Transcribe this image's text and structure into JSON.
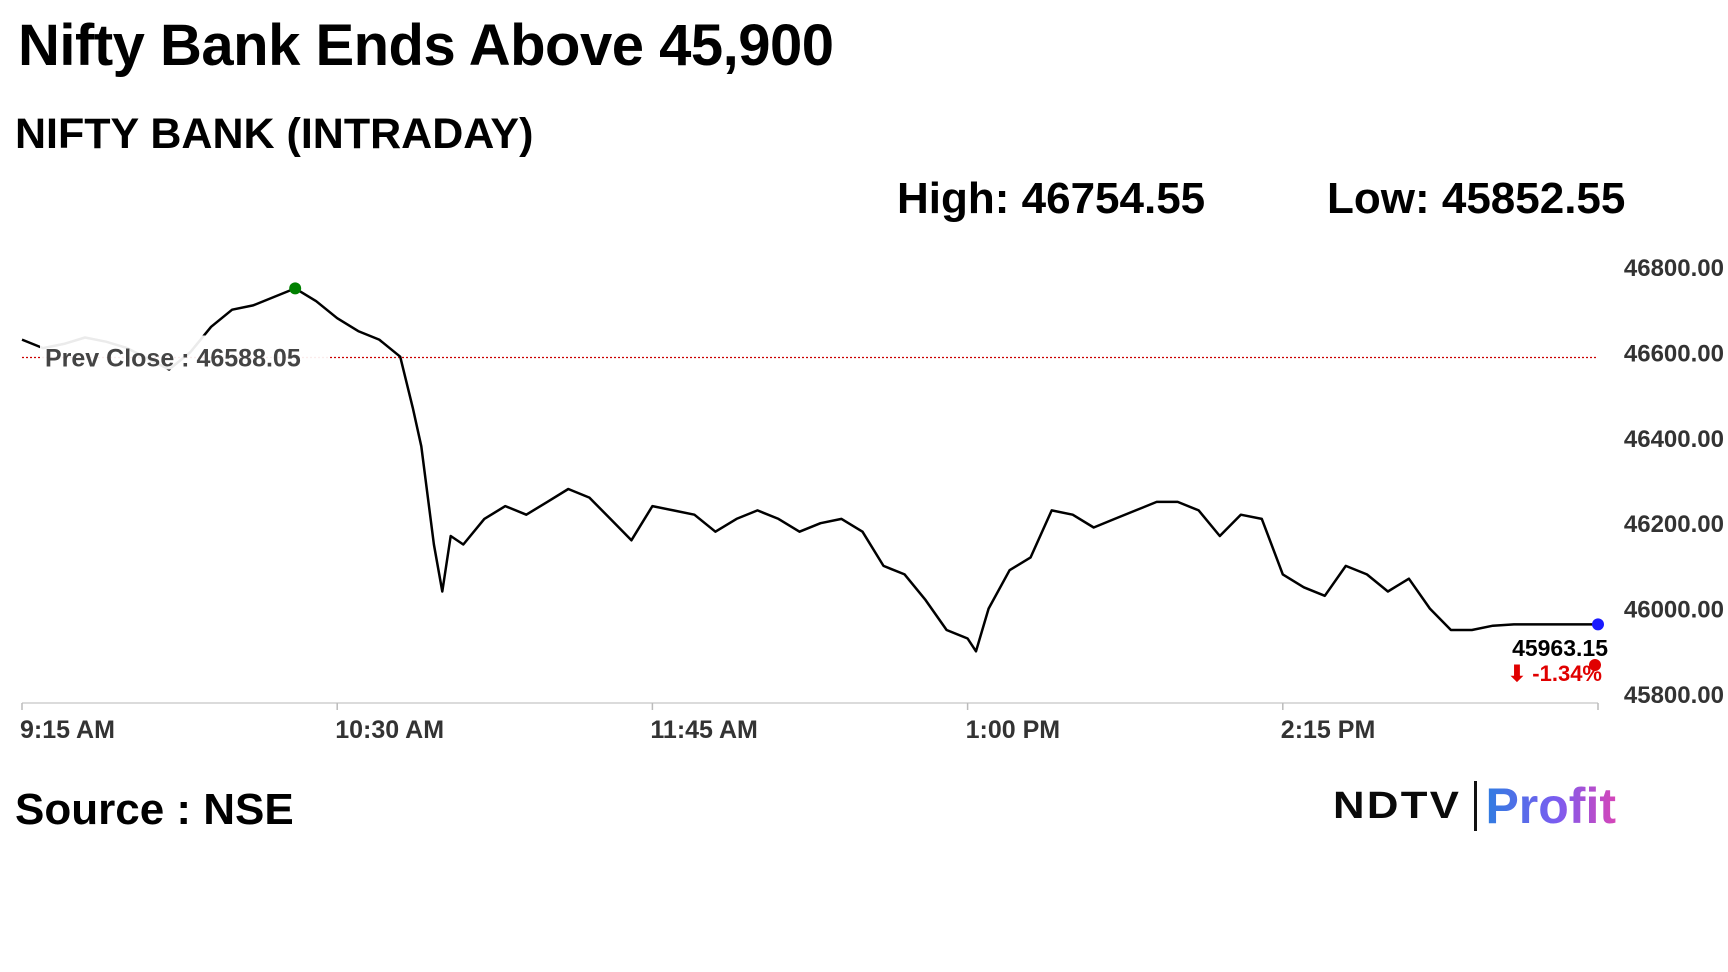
{
  "headline": "Nifty Bank Ends Above 45,900",
  "subtitle": "NIFTY BANK (INTRADAY)",
  "stats": {
    "high": "High: 46754.55",
    "low": "Low: 45852.55"
  },
  "source": "Source : NSE",
  "logo": {
    "part1": "NDTV",
    "part2": "Profit"
  },
  "colors": {
    "line": "#000000",
    "prev_close": "#cc0000",
    "high_marker": "#008000",
    "last_marker": "#1a1aff",
    "change_negative": "#e00000"
  },
  "chart_data": {
    "type": "line",
    "title": "NIFTY BANK (INTRADAY)",
    "xlabel": "",
    "ylabel": "",
    "xlim": [
      "9:15 AM",
      "3:30 PM"
    ],
    "ylim": [
      45800,
      46800
    ],
    "x_ticks": [
      "9:15 AM",
      "10:30 AM",
      "11:45 AM",
      "1:00 PM",
      "2:15 PM"
    ],
    "y_ticks": [
      "46800.00",
      "46600.00",
      "46400.00",
      "46200.00",
      "46000.00",
      "45800.00"
    ],
    "y_tick_values": [
      46800,
      46600,
      46400,
      46200,
      46000,
      45800
    ],
    "prev_close": {
      "label": "Prev Close : 46588.05",
      "value": 46588.05
    },
    "last": {
      "label": "45963.15",
      "value": 45963.15,
      "change_label": "⬇ -1.34%"
    },
    "grid": false,
    "series": [
      {
        "x": [
          "9:15 AM",
          "9:20 AM",
          "9:25 AM",
          "9:30 AM",
          "9:35 AM",
          "9:40 AM",
          "9:45 AM",
          "9:50 AM",
          "9:55 AM",
          "10:00 AM",
          "10:05 AM",
          "10:10 AM",
          "10:15 AM",
          "10:20 AM",
          "10:25 AM",
          "10:30 AM",
          "10:35 AM",
          "10:40 AM",
          "10:45 AM",
          "10:48 AM",
          "10:50 AM",
          "10:53 AM",
          "10:55 AM",
          "10:57 AM",
          "11:00 AM",
          "11:05 AM",
          "11:10 AM",
          "11:15 AM",
          "11:20 AM",
          "11:25 AM",
          "11:30 AM",
          "11:35 AM",
          "11:40 AM",
          "11:45 AM",
          "11:50 AM",
          "11:55 AM",
          "12:00 PM",
          "12:05 PM",
          "12:10 PM",
          "12:15 PM",
          "12:20 PM",
          "12:25 PM",
          "12:30 PM",
          "12:35 PM",
          "12:40 PM",
          "12:45 PM",
          "12:50 PM",
          "12:55 PM",
          "1:00 PM",
          "1:02 PM",
          "1:05 PM",
          "1:10 PM",
          "1:15 PM",
          "1:20 PM",
          "1:25 PM",
          "1:30 PM",
          "1:35 PM",
          "1:40 PM",
          "1:45 PM",
          "1:50 PM",
          "1:55 PM",
          "2:00 PM",
          "2:05 PM",
          "2:10 PM",
          "2:15 PM",
          "2:20 PM",
          "2:25 PM",
          "2:30 PM",
          "2:35 PM",
          "2:40 PM",
          "2:45 PM",
          "2:50 PM",
          "2:55 PM",
          "3:00 PM",
          "3:05 PM",
          "3:10 PM",
          "3:15 PM",
          "3:20 PM",
          "3:25 PM",
          "3:30 PM"
        ],
        "y": [
          46630,
          46610,
          46620,
          46635,
          46625,
          46610,
          46585,
          46560,
          46600,
          46660,
          46700,
          46710,
          46730,
          46750,
          46720,
          46680,
          46650,
          46630,
          46590,
          46470,
          46380,
          46150,
          46040,
          46170,
          46150,
          46210,
          46240,
          46220,
          46250,
          46280,
          46260,
          46210,
          46160,
          46240,
          46230,
          46220,
          46180,
          46210,
          46230,
          46210,
          46180,
          46200,
          46210,
          46180,
          46100,
          46080,
          46020,
          45950,
          45930,
          45900,
          46000,
          46090,
          46120,
          46230,
          46220,
          46190,
          46210,
          46230,
          46250,
          46250,
          46230,
          46170,
          46220,
          46210,
          46080,
          46050,
          46030,
          46100,
          46080,
          46040,
          46070,
          46000,
          45950,
          45950,
          45960,
          45963,
          45963,
          45963,
          45963,
          45963
        ]
      }
    ]
  }
}
